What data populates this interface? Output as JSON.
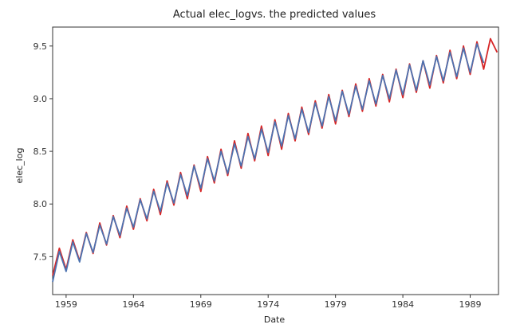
{
  "chart_data": {
    "type": "line",
    "title": "Actual elec_logvs. the predicted values",
    "xlabel": "Date",
    "ylabel": "elec_log",
    "xlim": [
      1958,
      1991.1
    ],
    "ylim": [
      7.14,
      9.68
    ],
    "x_ticks": [
      1959,
      1964,
      1969,
      1974,
      1979,
      1984,
      1989
    ],
    "x_tick_labels": [
      "1959",
      "1964",
      "1969",
      "1974",
      "1979",
      "1984",
      "1989"
    ],
    "y_ticks": [
      7.5,
      8.0,
      8.5,
      9.0,
      9.5
    ],
    "y_tick_labels": [
      "7.5",
      "8.0",
      "8.5",
      "9.0",
      "9.5"
    ],
    "grid": false,
    "legend": "none",
    "series": [
      {
        "role": "actual",
        "color": "#d62728",
        "x": [
          1958.0,
          1958.5,
          1959.0,
          1959.5,
          1960.0,
          1960.5,
          1961.0,
          1961.5,
          1962.0,
          1962.5,
          1963.0,
          1963.5,
          1964.0,
          1964.5,
          1965.0,
          1965.5,
          1966.0,
          1966.5,
          1967.0,
          1967.5,
          1968.0,
          1968.5,
          1969.0,
          1969.5,
          1970.0,
          1970.5,
          1971.0,
          1971.5,
          1972.0,
          1972.5,
          1973.0,
          1973.5,
          1974.0,
          1974.5,
          1975.0,
          1975.5,
          1976.0,
          1976.5,
          1977.0,
          1977.5,
          1978.0,
          1978.5,
          1979.0,
          1979.5,
          1980.0,
          1980.5,
          1981.0,
          1981.5,
          1982.0,
          1982.5,
          1983.0,
          1983.5,
          1984.0,
          1984.5,
          1985.0,
          1985.5,
          1986.0,
          1986.5,
          1987.0,
          1987.5,
          1988.0,
          1988.5,
          1989.0,
          1989.5,
          1990.0,
          1990.5,
          1991.0
        ],
        "values": [
          7.32,
          7.58,
          7.38,
          7.66,
          7.46,
          7.73,
          7.53,
          7.82,
          7.61,
          7.89,
          7.68,
          7.98,
          7.76,
          8.05,
          7.84,
          8.14,
          7.9,
          8.22,
          7.99,
          8.3,
          8.05,
          8.37,
          8.12,
          8.45,
          8.2,
          8.52,
          8.27,
          8.6,
          8.34,
          8.67,
          8.41,
          8.74,
          8.46,
          8.8,
          8.52,
          8.86,
          8.6,
          8.92,
          8.66,
          8.98,
          8.72,
          9.04,
          8.76,
          9.08,
          8.83,
          9.14,
          8.88,
          9.19,
          8.93,
          9.23,
          8.97,
          9.28,
          9.01,
          9.33,
          9.06,
          9.36,
          9.1,
          9.41,
          9.15,
          9.46,
          9.19,
          9.5,
          9.23,
          9.54,
          9.28,
          9.57,
          9.44
        ]
      },
      {
        "role": "predicted",
        "color": "#4c72b0",
        "x": [
          1958.0,
          1958.5,
          1959.0,
          1959.5,
          1960.0,
          1960.5,
          1961.0,
          1961.5,
          1962.0,
          1962.5,
          1963.0,
          1963.5,
          1964.0,
          1964.5,
          1965.0,
          1965.5,
          1966.0,
          1966.5,
          1967.0,
          1967.5,
          1968.0,
          1968.5,
          1969.0,
          1969.5,
          1970.0,
          1970.5,
          1971.0,
          1971.5,
          1972.0,
          1972.5,
          1973.0,
          1973.5,
          1974.0,
          1974.5,
          1975.0,
          1975.5,
          1976.0,
          1976.5,
          1977.0,
          1977.5,
          1978.0,
          1978.5,
          1979.0,
          1979.5,
          1980.0,
          1980.5,
          1981.0,
          1981.5,
          1982.0,
          1982.5,
          1983.0,
          1983.5,
          1984.0,
          1984.5,
          1985.0,
          1985.5,
          1986.0,
          1986.5,
          1987.0,
          1987.5,
          1988.0,
          1988.5,
          1989.0,
          1989.5,
          1990.0
        ],
        "values": [
          7.26,
          7.55,
          7.36,
          7.64,
          7.45,
          7.72,
          7.54,
          7.8,
          7.62,
          7.88,
          7.7,
          7.96,
          7.78,
          8.04,
          7.86,
          8.12,
          7.93,
          8.2,
          8.01,
          8.28,
          8.08,
          8.36,
          8.15,
          8.43,
          8.22,
          8.5,
          8.29,
          8.57,
          8.36,
          8.64,
          8.43,
          8.71,
          8.49,
          8.78,
          8.55,
          8.84,
          8.62,
          8.9,
          8.68,
          8.96,
          8.74,
          9.02,
          8.79,
          9.07,
          8.85,
          9.12,
          8.9,
          9.17,
          8.95,
          9.22,
          9.0,
          9.27,
          9.04,
          9.32,
          9.08,
          9.36,
          9.13,
          9.4,
          9.17,
          9.44,
          9.21,
          9.48,
          9.25,
          9.52,
          9.34
        ]
      }
    ]
  }
}
